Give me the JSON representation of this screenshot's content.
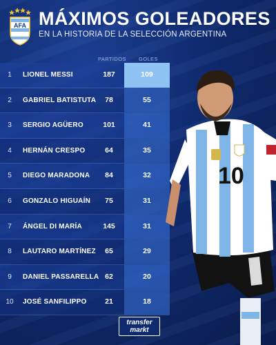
{
  "header": {
    "title": "MÁXIMOS GOLEADORES",
    "subtitle": "EN LA HISTORIA DE LA SELECCIÓN ARGENTINA",
    "crest_text": "AFA"
  },
  "columns": {
    "partidos": "PARTIDOS",
    "goles": "GOLES"
  },
  "rows": [
    {
      "rank": "1",
      "name": "LIONEL MESSI",
      "partidos": "187",
      "goles": "109"
    },
    {
      "rank": "2",
      "name": "GABRIEL BATISTUTA",
      "partidos": "78",
      "goles": "55"
    },
    {
      "rank": "3",
      "name": "SERGIO AGÜERO",
      "partidos": "101",
      "goles": "41"
    },
    {
      "rank": "4",
      "name": "HERNÁN CRESPO",
      "partidos": "64",
      "goles": "35"
    },
    {
      "rank": "5",
      "name": "DIEGO MARADONA",
      "partidos": "84",
      "goles": "32"
    },
    {
      "rank": "6",
      "name": "GONZALO HIGUAÍN",
      "partidos": "75",
      "goles": "31"
    },
    {
      "rank": "7",
      "name": "ÁNGEL DI MARÍA",
      "partidos": "145",
      "goles": "31"
    },
    {
      "rank": "8",
      "name": "LAUTARO MARTÍNEZ",
      "partidos": "65",
      "goles": "29"
    },
    {
      "rank": "9",
      "name": "DANIEL PASSARELLA",
      "partidos": "62",
      "goles": "20"
    },
    {
      "rank": "10",
      "name": "JOSÉ SANFILIPPO",
      "partidos": "21",
      "goles": "18"
    }
  ],
  "player": {
    "shirt_number": "10"
  },
  "logo": {
    "line1": "transfer",
    "line2": "markt"
  },
  "colors": {
    "background": "#0f2a6e",
    "goals_highlight": "#8fc3f3",
    "jersey_sky_blue": "#7fb4e6",
    "text": "#ffffff"
  }
}
